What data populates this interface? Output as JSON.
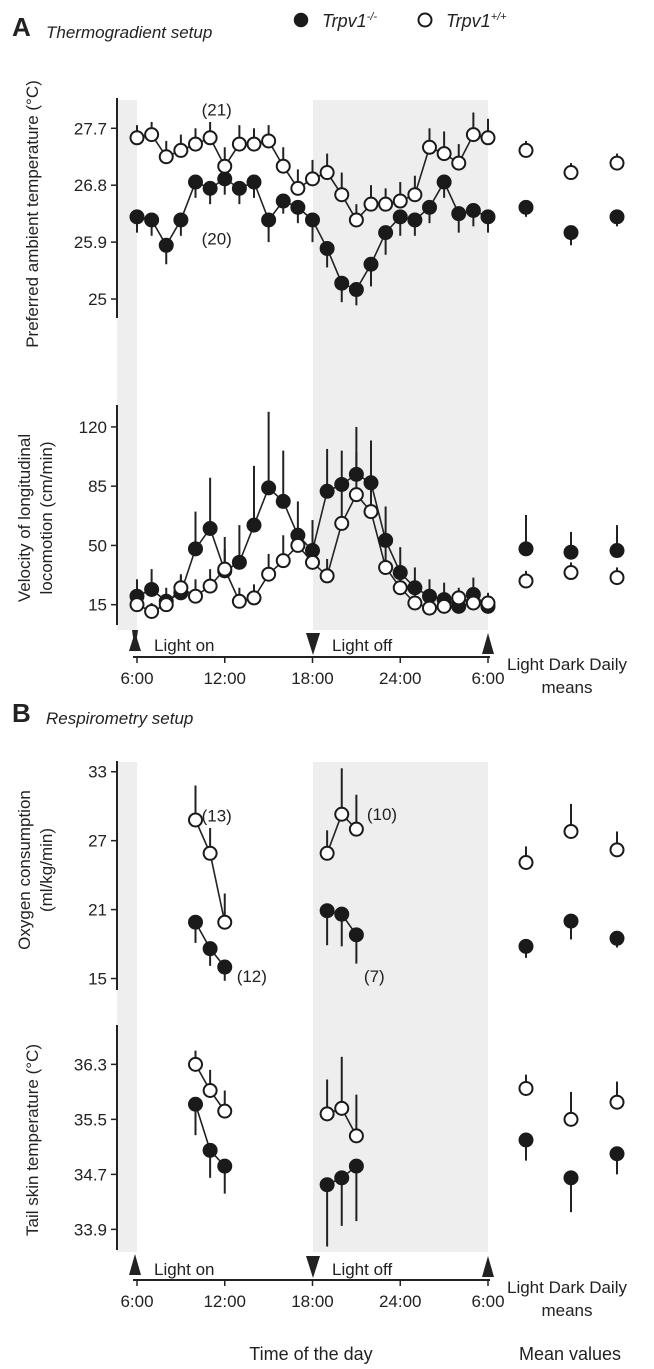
{
  "legend": {
    "knockout_label": "Trpv1",
    "knockout_sup": "-/-",
    "wildtype_label": "Trpv1",
    "wildtype_sup": "+/+"
  },
  "panel_a": {
    "letter": "A",
    "title": "Thermogradient setup",
    "light_on": "Light on",
    "light_off": "Light off",
    "x_ticks": [
      "6:00",
      "12:00",
      "18:00",
      "24:00",
      "6:00"
    ],
    "means_header": "Light Dark Daily",
    "means_sub": "means"
  },
  "panel_b": {
    "letter": "B",
    "title": "Respirometry setup",
    "light_on": "Light on",
    "light_off": "Light off",
    "x_ticks": [
      "6:00",
      "12:00",
      "18:00",
      "24:00",
      "6:00"
    ],
    "means_header": "Light Dark Daily",
    "means_sub": "means"
  },
  "footer": {
    "x_title": "Time of the day",
    "means_title": "Mean values"
  },
  "chart_data": [
    {
      "id": "temp",
      "type": "line",
      "ylabel": "Preferred ambient temperature (°C)",
      "ylim": [
        24.7,
        28.1
      ],
      "yticks": [
        25.0,
        25.9,
        26.8,
        27.7
      ],
      "xlim": [
        5,
        30
      ],
      "x_tick_values": [
        6,
        12,
        18,
        24,
        30
      ],
      "annotations": [
        {
          "text": "(21)",
          "x": 11.1,
          "y": 28.0
        },
        {
          "text": "(20)",
          "x": 11.1,
          "y": 25.96
        }
      ],
      "series": [
        {
          "name": "Trpv1-/-",
          "fill": "black",
          "x": [
            6,
            7,
            8,
            9,
            10,
            11,
            12,
            13,
            14,
            15,
            16,
            17,
            18,
            19,
            20,
            21,
            22,
            23,
            24,
            25,
            26,
            27,
            28,
            29,
            30
          ],
          "y": [
            26.3,
            26.25,
            25.85,
            26.25,
            26.85,
            26.75,
            26.9,
            26.75,
            26.85,
            26.25,
            26.55,
            26.45,
            26.25,
            25.8,
            25.25,
            25.15,
            25.55,
            26.05,
            26.3,
            26.25,
            26.45,
            26.85,
            26.35,
            26.4,
            26.3
          ],
          "err": [
            0.25,
            0.25,
            0.3,
            0.25,
            0.25,
            0.25,
            0.25,
            0.25,
            0.25,
            0.35,
            0.2,
            0.25,
            0.35,
            0.3,
            0.3,
            0.25,
            0.35,
            0.35,
            0.3,
            0.25,
            0.25,
            0.25,
            0.3,
            0.25,
            0.25
          ]
        },
        {
          "name": "Trpv1+/+",
          "fill": "white",
          "x": [
            6,
            7,
            8,
            9,
            10,
            11,
            12,
            13,
            14,
            15,
            16,
            17,
            18,
            19,
            20,
            21,
            22,
            23,
            24,
            25,
            26,
            27,
            28,
            29,
            30
          ],
          "y": [
            27.55,
            27.6,
            27.25,
            27.35,
            27.45,
            27.55,
            27.1,
            27.45,
            27.45,
            27.5,
            27.1,
            26.75,
            26.9,
            27.0,
            26.65,
            26.25,
            26.5,
            26.5,
            26.55,
            26.65,
            27.4,
            27.3,
            27.15,
            27.6,
            27.55
          ],
          "err": [
            0.2,
            0.2,
            0.25,
            0.25,
            0.25,
            0.25,
            0.3,
            0.3,
            0.25,
            0.25,
            0.3,
            0.3,
            0.3,
            0.3,
            0.35,
            0.25,
            0.3,
            0.25,
            0.3,
            0.3,
            0.3,
            0.35,
            0.3,
            0.35,
            0.3
          ]
        }
      ],
      "means": [
        {
          "name": "Trpv1-/-",
          "fill": "black",
          "values": [
            26.45,
            26.05,
            26.3
          ],
          "err": [
            0.15,
            0.2,
            0.15
          ]
        },
        {
          "name": "Trpv1+/+",
          "fill": "white",
          "values": [
            27.35,
            27.0,
            27.15
          ],
          "err": [
            0.15,
            0.15,
            0.15
          ]
        }
      ]
    },
    {
      "id": "vel",
      "type": "line",
      "ylabel": "Velocity of longitudinal locomotion (cm/min)",
      "ylim": [
        3,
        130
      ],
      "yticks": [
        15,
        50,
        85,
        120
      ],
      "xlim": [
        5,
        30
      ],
      "x_tick_values": [
        6,
        12,
        18,
        24,
        30
      ],
      "series": [
        {
          "name": "Trpv1-/-",
          "fill": "black",
          "x": [
            6,
            7,
            8,
            9,
            10,
            11,
            12,
            13,
            14,
            15,
            16,
            17,
            18,
            19,
            20,
            21,
            22,
            23,
            24,
            25,
            26,
            27,
            28,
            29,
            30
          ],
          "y": [
            20,
            24,
            17,
            22,
            48,
            60,
            35,
            40,
            62,
            84,
            76,
            56,
            47,
            82,
            86,
            92,
            87,
            53,
            34,
            25,
            20,
            18,
            14,
            21,
            14
          ],
          "err": [
            10,
            12,
            8,
            10,
            22,
            30,
            20,
            22,
            35,
            45,
            30,
            20,
            18,
            25,
            20,
            28,
            25,
            20,
            15,
            12,
            10,
            10,
            8,
            10,
            8
          ]
        },
        {
          "name": "Trpv1+/+",
          "fill": "white",
          "x": [
            6,
            7,
            8,
            9,
            10,
            11,
            12,
            13,
            14,
            15,
            16,
            17,
            18,
            19,
            20,
            21,
            22,
            23,
            24,
            25,
            26,
            27,
            28,
            29,
            30
          ],
          "y": [
            15,
            11,
            15,
            25,
            20,
            26,
            36,
            17,
            19,
            33,
            41,
            50,
            40,
            32,
            63,
            80,
            70,
            37,
            25,
            16,
            13,
            14,
            19,
            16,
            16
          ],
          "err": [
            5,
            5,
            6,
            8,
            10,
            10,
            12,
            8,
            8,
            12,
            15,
            10,
            12,
            10,
            20,
            25,
            20,
            12,
            10,
            6,
            5,
            5,
            6,
            6,
            5
          ]
        }
      ],
      "means": [
        {
          "name": "Trpv1-/-",
          "fill": "black",
          "values": [
            48,
            46,
            47
          ],
          "err": [
            20,
            12,
            15
          ]
        },
        {
          "name": "Trpv1+/+",
          "fill": "white",
          "values": [
            29,
            34,
            31
          ],
          "err": [
            6,
            6,
            6
          ]
        }
      ]
    },
    {
      "id": "oxy",
      "type": "line",
      "ylabel": "Oxygen consumption (ml/kg/min)",
      "ylim": [
        14,
        33.5
      ],
      "yticks": [
        15,
        21,
        27,
        33
      ],
      "xlim": [
        5,
        30
      ],
      "x_tick_values": [
        6,
        12,
        18,
        24,
        30
      ],
      "annotations": [
        {
          "text": "(13)",
          "x": 11.1,
          "y": 29.2
        },
        {
          "text": "(12)",
          "x": 13.5,
          "y": 15.2
        },
        {
          "text": "(10)",
          "x": 22.4,
          "y": 29.3
        },
        {
          "text": "(7)",
          "x": 22.2,
          "y": 15.2
        }
      ],
      "series": [
        {
          "name": "Trpv1-/-",
          "fill": "black",
          "x": [
            10,
            11,
            12
          ],
          "y": [
            19.9,
            17.6,
            16.0
          ],
          "err": [
            1.8,
            1.5,
            1.2
          ]
        },
        {
          "name": "Trpv1+/+",
          "fill": "white",
          "x": [
            10,
            11,
            12
          ],
          "y": [
            28.8,
            25.9,
            19.9
          ],
          "err": [
            3.0,
            2.2,
            2.5
          ]
        },
        {
          "name": "Trpv1-/-",
          "fill": "black",
          "x": [
            19,
            20,
            21
          ],
          "y": [
            20.9,
            20.6,
            18.8
          ],
          "err": [
            3.0,
            2.8,
            2.5
          ]
        },
        {
          "name": "Trpv1+/+",
          "fill": "white",
          "x": [
            19,
            20,
            21
          ],
          "y": [
            25.9,
            29.3,
            28.0
          ],
          "err": [
            2.0,
            4.0,
            3.0
          ]
        }
      ],
      "means": [
        {
          "name": "Trpv1-/-",
          "fill": "black",
          "values": [
            17.8,
            20.0,
            18.5
          ],
          "err": [
            1.0,
            1.6,
            0.8
          ]
        },
        {
          "name": "Trpv1+/+",
          "fill": "white",
          "values": [
            25.1,
            27.8,
            26.2
          ],
          "err": [
            1.4,
            2.4,
            1.6
          ]
        }
      ]
    },
    {
      "id": "skin",
      "type": "line",
      "ylabel": "Tail skin temperature (°C)",
      "ylim": [
        33.6,
        36.8
      ],
      "yticks": [
        33.9,
        34.7,
        35.5,
        36.3
      ],
      "xlim": [
        5,
        30
      ],
      "x_tick_values": [
        6,
        12,
        18,
        24,
        30
      ],
      "series": [
        {
          "name": "Trpv1-/-",
          "fill": "black",
          "x": [
            10,
            11,
            12
          ],
          "y": [
            35.72,
            35.05,
            34.82
          ],
          "err": [
            0.45,
            0.4,
            0.4
          ]
        },
        {
          "name": "Trpv1+/+",
          "fill": "white",
          "x": [
            10,
            11,
            12
          ],
          "y": [
            36.3,
            35.92,
            35.62
          ],
          "err": [
            0.2,
            0.3,
            0.3
          ]
        },
        {
          "name": "Trpv1-/-",
          "fill": "black",
          "x": [
            19,
            20,
            21
          ],
          "y": [
            34.55,
            34.65,
            34.82
          ],
          "err": [
            0.9,
            0.7,
            0.8
          ]
        },
        {
          "name": "Trpv1+/+",
          "fill": "white",
          "x": [
            19,
            20,
            21
          ],
          "y": [
            35.58,
            35.66,
            35.26
          ],
          "err": [
            0.5,
            0.75,
            0.6
          ]
        }
      ],
      "means": [
        {
          "name": "Trpv1-/-",
          "fill": "black",
          "values": [
            35.2,
            34.65,
            35.0
          ],
          "err": [
            0.3,
            0.5,
            0.3
          ]
        },
        {
          "name": "Trpv1+/+",
          "fill": "white",
          "values": [
            35.95,
            35.5,
            35.75
          ],
          "err": [
            0.2,
            0.4,
            0.3
          ]
        }
      ]
    }
  ]
}
